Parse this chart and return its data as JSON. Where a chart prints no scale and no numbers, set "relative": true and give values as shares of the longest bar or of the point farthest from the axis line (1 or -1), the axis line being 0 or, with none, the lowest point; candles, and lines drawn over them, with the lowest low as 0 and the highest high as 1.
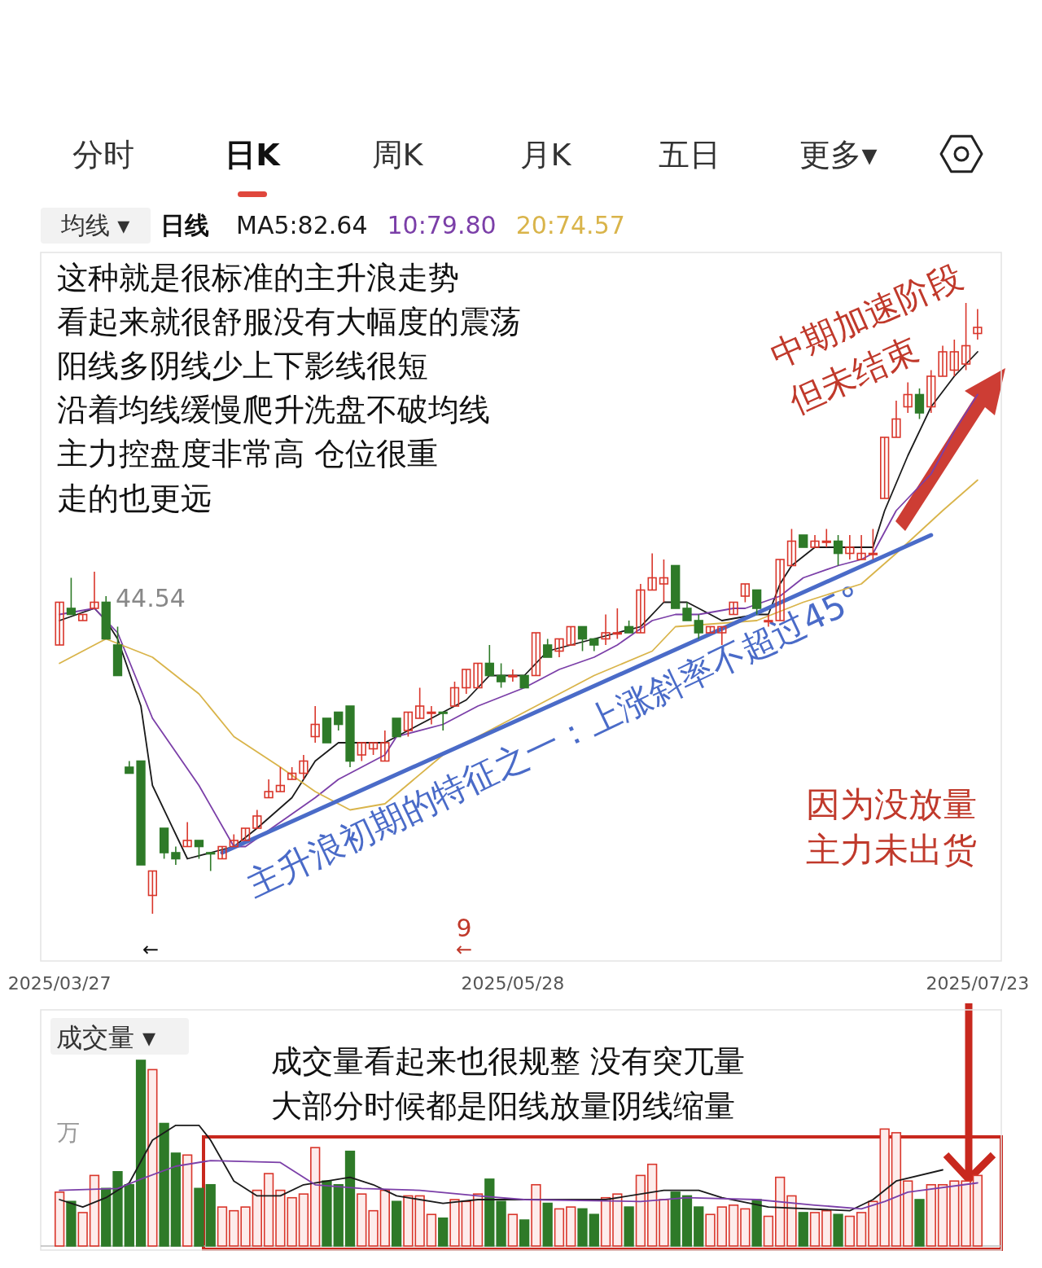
{
  "chart_data": [
    {
      "type": "candlestick",
      "relative": true,
      "legend": "top",
      "categories": [
        "2025/03/27",
        null,
        null,
        null,
        null,
        null,
        null,
        null,
        null,
        null,
        null,
        null,
        null,
        null,
        null,
        null,
        null,
        null,
        null,
        null,
        null,
        null,
        null,
        null,
        null,
        null,
        null,
        null,
        null,
        null,
        null,
        null,
        null,
        null,
        null,
        null,
        null,
        null,
        null,
        "2025/05/28",
        null,
        null,
        null,
        null,
        null,
        null,
        null,
        null,
        null,
        null,
        null,
        null,
        null,
        null,
        null,
        null,
        null,
        null,
        null,
        null,
        null,
        null,
        null,
        null,
        null,
        null,
        null,
        null,
        null,
        null,
        null,
        null,
        null,
        null,
        null,
        null,
        null,
        null,
        null,
        "2025/07/23"
      ],
      "ohlc": [
        [
          0.44,
          0.51,
          0.44,
          0.51
        ],
        [
          0.5,
          0.55,
          0.49,
          0.49
        ],
        [
          0.48,
          0.49,
          0.48,
          0.49
        ],
        [
          0.5,
          0.56,
          0.5,
          0.51
        ],
        [
          0.51,
          0.52,
          0.45,
          0.45
        ],
        [
          0.44,
          0.47,
          0.39,
          0.39
        ],
        [
          0.24,
          0.25,
          0.23,
          0.23
        ],
        [
          0.25,
          0.25,
          0.08,
          0.08
        ],
        [
          0.03,
          0.07,
          0,
          0.07
        ],
        [
          0.14,
          0.14,
          0.09,
          0.1
        ],
        [
          0.1,
          0.11,
          0.08,
          0.09
        ],
        [
          0.11,
          0.15,
          0.11,
          0.12
        ],
        [
          0.12,
          0.12,
          0.09,
          0.11
        ],
        [
          0.1,
          0.1,
          0.07,
          0.1
        ],
        [
          0.09,
          0.11,
          0.09,
          0.11
        ],
        [
          0.11,
          0.13,
          0.11,
          0.12
        ],
        [
          0.12,
          0.14,
          0.12,
          0.14
        ],
        [
          0.14,
          0.17,
          0.14,
          0.16
        ],
        [
          0.19,
          0.22,
          0.19,
          0.2
        ],
        [
          0.2,
          0.24,
          0.2,
          0.21
        ],
        [
          0.22,
          0.24,
          0.22,
          0.23
        ],
        [
          0.23,
          0.26,
          0.22,
          0.25
        ],
        [
          0.29,
          0.34,
          0.28,
          0.31
        ],
        [
          0.32,
          0.32,
          0.28,
          0.28
        ],
        [
          0.33,
          0.33,
          0.3,
          0.31
        ],
        [
          0.34,
          0.34,
          0.24,
          0.25
        ],
        [
          0.26,
          0.28,
          0.25,
          0.28
        ],
        [
          0.27,
          0.28,
          0.26,
          0.28
        ],
        [
          0.25,
          0.3,
          0.25,
          0.28
        ],
        [
          0.32,
          0.32,
          0.29,
          0.29
        ],
        [
          0.3,
          0.33,
          0.29,
          0.33
        ],
        [
          0.32,
          0.37,
          0.32,
          0.34
        ],
        [
          0.33,
          0.34,
          0.31,
          0.33
        ],
        [
          0.33,
          0.33,
          0.3,
          0.33
        ],
        [
          0.34,
          0.38,
          0.34,
          0.37
        ],
        [
          0.37,
          0.4,
          0.36,
          0.4
        ],
        [
          0.37,
          0.41,
          0.37,
          0.41
        ],
        [
          0.41,
          0.44,
          0.39,
          0.39
        ],
        [
          0.39,
          0.41,
          0.37,
          0.38
        ],
        [
          0.39,
          0.4,
          0.38,
          0.39
        ],
        [
          0.39,
          0.39,
          0.37,
          0.37
        ],
        [
          0.39,
          0.46,
          0.39,
          0.46
        ],
        [
          0.44,
          0.45,
          0.42,
          0.42
        ],
        [
          0.43,
          0.45,
          0.42,
          0.45
        ],
        [
          0.44,
          0.47,
          0.44,
          0.47
        ],
        [
          0.47,
          0.47,
          0.43,
          0.45
        ],
        [
          0.45,
          0.45,
          0.43,
          0.44
        ],
        [
          0.45,
          0.49,
          0.44,
          0.46
        ],
        [
          0.46,
          0.5,
          0.45,
          0.46
        ],
        [
          0.47,
          0.48,
          0.46,
          0.46
        ],
        [
          0.46,
          0.54,
          0.46,
          0.53
        ],
        [
          0.53,
          0.59,
          0.53,
          0.55
        ],
        [
          0.54,
          0.58,
          0.51,
          0.55
        ],
        [
          0.57,
          0.57,
          0.5,
          0.5
        ],
        [
          0.5,
          0.51,
          0.48,
          0.48
        ],
        [
          0.48,
          0.49,
          0.45,
          0.46
        ],
        [
          0.46,
          0.47,
          0.46,
          0.47
        ],
        [
          0.46,
          0.47,
          0.44,
          0.47
        ],
        [
          0.49,
          0.51,
          0.49,
          0.51
        ],
        [
          0.52,
          0.54,
          0.51,
          0.54
        ],
        [
          0.53,
          0.53,
          0.49,
          0.5
        ],
        [
          0.48,
          0.49,
          0.47,
          0.48
        ],
        [
          0.48,
          0.58,
          0.48,
          0.58
        ],
        [
          0.57,
          0.63,
          0.57,
          0.61
        ],
        [
          0.62,
          0.62,
          0.6,
          0.6
        ],
        [
          0.6,
          0.62,
          0.6,
          0.61
        ],
        [
          0.61,
          0.63,
          0.6,
          0.61
        ],
        [
          0.61,
          0.62,
          0.57,
          0.59
        ],
        [
          0.59,
          0.62,
          0.58,
          0.6
        ],
        [
          0.58,
          0.62,
          0.58,
          0.59
        ],
        [
          0.59,
          0.63,
          0.58,
          0.59
        ],
        [
          0.68,
          0.78,
          0.68,
          0.78
        ],
        [
          0.78,
          0.84,
          0.78,
          0.81
        ],
        [
          0.83,
          0.87,
          0.82,
          0.85
        ],
        [
          0.85,
          0.86,
          0.81,
          0.82
        ],
        [
          0.83,
          0.89,
          0.82,
          0.88
        ],
        [
          0.88,
          0.93,
          0.88,
          0.92
        ],
        [
          0.89,
          0.94,
          0.88,
          0.92
        ],
        [
          0.9,
          1,
          0.89,
          0.93
        ],
        [
          0.95,
          0.99,
          0.94,
          0.96
        ]
      ],
      "colors": [
        "#d9362b",
        "#2e7a28",
        "#d9362b",
        "#d9362b",
        "#2e7a28",
        "#2e7a28",
        "#2e7a28",
        "#2e7a28",
        "#d9362b",
        "#2e7a28",
        "#2e7a28",
        "#d9362b",
        "#2e7a28",
        "#2e7a28",
        "#d9362b",
        "#d9362b",
        "#d9362b",
        "#d9362b",
        "#d9362b",
        "#d9362b",
        "#d9362b",
        "#d9362b",
        "#d9362b",
        "#2e7a28",
        "#2e7a28",
        "#2e7a28",
        "#d9362b",
        "#d9362b",
        "#d9362b",
        "#2e7a28",
        "#d9362b",
        "#d9362b",
        "#d9362b",
        "#2e7a28",
        "#d9362b",
        "#d9362b",
        "#d9362b",
        "#2e7a28",
        "#2e7a28",
        "#d9362b",
        "#2e7a28",
        "#d9362b",
        "#2e7a28",
        "#d9362b",
        "#d9362b",
        "#2e7a28",
        "#2e7a28",
        "#d9362b",
        "#d9362b",
        "#2e7a28",
        "#d9362b",
        "#d9362b",
        "#d9362b",
        "#2e7a28",
        "#2e7a28",
        "#2e7a28",
        "#d9362b",
        "#d9362b",
        "#d9362b",
        "#d9362b",
        "#2e7a28",
        "#d9362b",
        "#d9362b",
        "#d9362b",
        "#2e7a28",
        "#d9362b",
        "#d9362b",
        "#2e7a28",
        "#d9362b",
        "#d9362b",
        "#d9362b",
        "#d9362b",
        "#d9362b",
        "#d9362b",
        "#2e7a28",
        "#d9362b",
        "#d9362b",
        "#d9362b",
        "#d9362b",
        "#d9362b"
      ],
      "series": [
        {
          "type": "line",
          "name": "MA5:82.64",
          "color": "#1a1a1a",
          "values": [
            0.48,
            null,
            null,
            0.5,
            0.48,
            0.45,
            null,
            0.34,
            0.21,
            null,
            0.13,
            0.09,
            null,
            0.1,
            null,
            0.11,
            null,
            0.14,
            null,
            null,
            0.19,
            null,
            0.25,
            null,
            0.28,
            null,
            null,
            null,
            0.28,
            null,
            0.3,
            null,
            null,
            0.33,
            null,
            0.35,
            null,
            0.39,
            null,
            null,
            0.39,
            null,
            0.43,
            null,
            0.44,
            null,
            0.45,
            null,
            0.46,
            null,
            0.47,
            null,
            0.51,
            null,
            0.51,
            null,
            null,
            0.48,
            null,
            null,
            0.49,
            0.49,
            0.54,
            0.57,
            null,
            0.6,
            null,
            null,
            null,
            null,
            0.6,
            0.66,
            null,
            0.75,
            null,
            0.83,
            null,
            0.88,
            null,
            0.92
          ]
        },
        {
          "type": "line",
          "name": "10:79.80",
          "color": "#7b3fa8",
          "values": [
            0.49,
            null,
            null,
            0.5,
            null,
            0.46,
            null,
            null,
            0.32,
            null,
            null,
            null,
            0.21,
            null,
            null,
            0.11,
            0.11,
            null,
            null,
            0.15,
            null,
            null,
            0.19,
            null,
            0.22,
            null,
            null,
            null,
            0.26,
            0.29,
            null,
            null,
            null,
            0.31,
            null,
            null,
            0.34,
            null,
            null,
            null,
            0.37,
            null,
            null,
            0.4,
            null,
            null,
            0.42,
            null,
            0.44,
            null,
            null,
            0.48,
            null,
            0.49,
            null,
            0.49,
            null,
            null,
            0.5,
            0.5,
            null,
            null,
            0.52,
            null,
            0.55,
            null,
            null,
            0.57,
            null,
            0.58,
            0.59,
            null,
            0.66,
            null,
            null,
            0.72,
            null,
            0.79,
            null,
            0.85
          ]
        },
        {
          "type": "line",
          "name": "20:74.57",
          "color": "#d9b44a",
          "values": [
            0.41,
            null,
            null,
            null,
            0.45,
            null,
            null,
            null,
            0.42,
            null,
            null,
            null,
            0.36,
            null,
            null,
            0.29,
            null,
            null,
            null,
            0.24,
            null,
            null,
            0.2,
            null,
            null,
            0.17,
            null,
            null,
            0.18,
            null,
            null,
            null,
            null,
            0.26,
            null,
            null,
            null,
            null,
            null,
            null,
            null,
            null,
            null,
            null,
            null,
            null,
            0.39,
            null,
            null,
            null,
            null,
            0.43,
            null,
            0.47,
            null,
            null,
            null,
            null,
            null,
            null,
            0.48,
            null,
            null,
            null,
            0.51,
            null,
            null,
            null,
            null,
            0.54,
            null,
            null,
            0.59,
            null,
            null,
            null,
            0.66,
            null,
            null,
            0.71
          ]
        },
        {
          "type": "line",
          "color": "#4a6bc8",
          "values": [
            null,
            null,
            null,
            null,
            null,
            null,
            null,
            null,
            null,
            null,
            null,
            null,
            null,
            null,
            0.1,
            null,
            null,
            null,
            null,
            null,
            null,
            null,
            null,
            null,
            null,
            null,
            null,
            null,
            null,
            null,
            null,
            null,
            null,
            null,
            null,
            null,
            null,
            null,
            null,
            null,
            null,
            null,
            null,
            null,
            null,
            null,
            null,
            null,
            null,
            null,
            null,
            null,
            null,
            null,
            null,
            null,
            null,
            null,
            null,
            null,
            null,
            null,
            null,
            null,
            null,
            null,
            null,
            null,
            null,
            null,
            null,
            null,
            null,
            null,
            null,
            0.62,
            null,
            null,
            null,
            null
          ]
        }
      ],
      "annotations": [
        "分时",
        "日K",
        "周K",
        "月K",
        "五日",
        "更多▾",
        "均线 ▾",
        "日线",
        "这种就是很标准的主升浪走势",
        "看起来就很舒服没有大幅度的震荡",
        "阳线多阴线少上下影线很短",
        "沿着均线缓慢爬升洗盘不破均线",
        "主力控盘度非常高  仓位很重",
        "走的也更远",
        "中期加速阶段",
        "但未结束",
        "主升浪初期的特征之一：上涨斜率不超过45°",
        "因为没放量",
        "主力未出货",
        "44.54",
        "←",
        "9",
        "←"
      ]
    },
    {
      "type": "bar",
      "relative": true,
      "categories": [
        null,
        null,
        null,
        null,
        null,
        null,
        null,
        null,
        null,
        null,
        null,
        null,
        null,
        null,
        null,
        null,
        null,
        null,
        null,
        null,
        null,
        null,
        null,
        null,
        null,
        null,
        null,
        null,
        null,
        null,
        null,
        null,
        null,
        null,
        null,
        null,
        null,
        null,
        null,
        null,
        null,
        null,
        null,
        null,
        null,
        null,
        null,
        null,
        null,
        null,
        null,
        null,
        null,
        null,
        null,
        null,
        null,
        null,
        null,
        null,
        null,
        null,
        null,
        null,
        null,
        null,
        null,
        null,
        null,
        null,
        null,
        null,
        null,
        null,
        null,
        null,
        null,
        null,
        null,
        null
      ],
      "values": [
        0.29,
        0.24,
        0.18,
        0.38,
        0.31,
        0.4,
        0.33,
        1,
        0.95,
        0.66,
        0.5,
        0.49,
        0.31,
        0.33,
        0.21,
        0.19,
        0.21,
        0.3,
        0.39,
        0.3,
        0.26,
        0.28,
        0.53,
        0.35,
        0.33,
        0.51,
        0.28,
        0.19,
        0.3,
        0.24,
        0.27,
        0.27,
        0.17,
        0.15,
        0.25,
        0.24,
        0.28,
        0.36,
        0.24,
        0.17,
        0.14,
        0.33,
        0.23,
        0.2,
        0.21,
        0.2,
        0.17,
        0.26,
        0.28,
        0.21,
        0.38,
        0.44,
        0.25,
        0.29,
        0.27,
        0.21,
        0.17,
        0.21,
        0.22,
        0.2,
        0.25,
        0.16,
        0.37,
        0.27,
        0.18,
        0.18,
        0.19,
        0.17,
        0.16,
        0.18,
        0.24,
        0.63,
        0.61,
        0.35,
        0.25,
        0.33,
        0.33,
        0.35,
        0.35,
        0.38
      ],
      "colors": [
        "#d9362b",
        "#2e7a28",
        "#d9362b",
        "#d9362b",
        "#2e7a28",
        "#2e7a28",
        "#2e7a28",
        "#2e7a28",
        "#d9362b",
        "#2e7a28",
        "#2e7a28",
        "#d9362b",
        "#2e7a28",
        "#2e7a28",
        "#d9362b",
        "#d9362b",
        "#d9362b",
        "#d9362b",
        "#d9362b",
        "#d9362b",
        "#d9362b",
        "#d9362b",
        "#d9362b",
        "#2e7a28",
        "#2e7a28",
        "#2e7a28",
        "#d9362b",
        "#d9362b",
        "#d9362b",
        "#2e7a28",
        "#d9362b",
        "#d9362b",
        "#d9362b",
        "#2e7a28",
        "#d9362b",
        "#d9362b",
        "#d9362b",
        "#2e7a28",
        "#2e7a28",
        "#d9362b",
        "#2e7a28",
        "#d9362b",
        "#2e7a28",
        "#d9362b",
        "#d9362b",
        "#2e7a28",
        "#2e7a28",
        "#d9362b",
        "#d9362b",
        "#2e7a28",
        "#d9362b",
        "#d9362b",
        "#d9362b",
        "#2e7a28",
        "#2e7a28",
        "#2e7a28",
        "#d9362b",
        "#d9362b",
        "#d9362b",
        "#d9362b",
        "#2e7a28",
        "#d9362b",
        "#d9362b",
        "#d9362b",
        "#2e7a28",
        "#d9362b",
        "#d9362b",
        "#2e7a28",
        "#d9362b",
        "#d9362b",
        "#d9362b",
        "#d9362b",
        "#d9362b",
        "#d9362b",
        "#2e7a28",
        "#d9362b",
        "#d9362b",
        "#d9362b",
        "#d9362b",
        "#d9362b"
      ],
      "series": [
        {
          "type": "line",
          "color": "#1a1a1a",
          "values": [
            0.25,
            null,
            0.21,
            null,
            0.26,
            null,
            0.34,
            null,
            0.57,
            null,
            0.65,
            null,
            0.65,
            0.57,
            null,
            0.35,
            null,
            0.27,
            null,
            0.27,
            null,
            0.33,
            null,
            null,
            null,
            0.37,
            null,
            0.33,
            null,
            0.27,
            null,
            null,
            null,
            0.23,
            null,
            null,
            0.25,
            null,
            null,
            null,
            0.25,
            null,
            null,
            null,
            null,
            null,
            null,
            0.25,
            null,
            null,
            null,
            null,
            0.3,
            null,
            null,
            0.3,
            null,
            0.26,
            null,
            null,
            null,
            0.21,
            null,
            null,
            null,
            null,
            null,
            null,
            0.19,
            null,
            0.25,
            null,
            0.35,
            null,
            null,
            null,
            0.41,
            null,
            null,
            null
          ]
        },
        {
          "type": "line",
          "color": "#7b3fa8",
          "values": [
            0.3,
            null,
            null,
            null,
            null,
            0.31,
            null,
            0.36,
            null,
            null,
            0.43,
            null,
            null,
            0.46,
            null,
            null,
            null,
            null,
            null,
            0.45,
            null,
            null,
            0.33,
            null,
            null,
            null,
            0.31,
            null,
            null,
            null,
            null,
            0.3,
            null,
            null,
            null,
            null,
            0.27,
            null,
            null,
            null,
            0.25,
            null,
            null,
            null,
            null,
            null,
            null,
            null,
            null,
            null,
            0.24,
            null,
            null,
            null,
            0.26,
            null,
            null,
            null,
            null,
            null,
            0.25,
            null,
            null,
            null,
            null,
            0.22,
            null,
            null,
            null,
            0.2,
            null,
            0.24,
            null,
            0.29,
            null,
            null,
            null,
            null,
            null,
            0.34
          ]
        }
      ],
      "annotations": [
        "成交量 ▾",
        "成交量看起来也很规整  没有突兀量",
        "大部分时候都是阳线放量阴线缩量",
        "万"
      ]
    }
  ]
}
